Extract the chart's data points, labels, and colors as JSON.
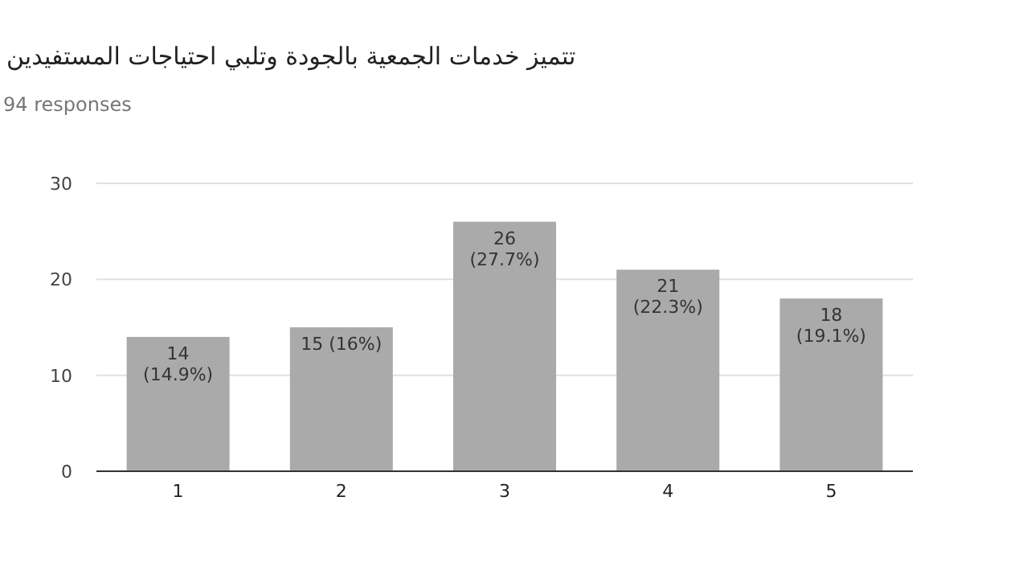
{
  "chart_data": {
    "type": "bar",
    "title": "تتميز خدمات الجمعية بالجودة وتلبي احتياجات المستفيدين",
    "subtitle": "94 responses",
    "categories": [
      "1",
      "2",
      "3",
      "4",
      "5"
    ],
    "values": [
      14,
      15,
      26,
      21,
      18
    ],
    "value_labels": [
      "14 (14.9%)",
      "15 (16%)",
      "26 (27.7%)",
      "21 (22.3%)",
      "18 (19.1%)"
    ],
    "color": "#aaaaaa",
    "ylim": [
      0,
      30
    ],
    "yticks": [
      0,
      10,
      20,
      30
    ],
    "grid": "y"
  }
}
